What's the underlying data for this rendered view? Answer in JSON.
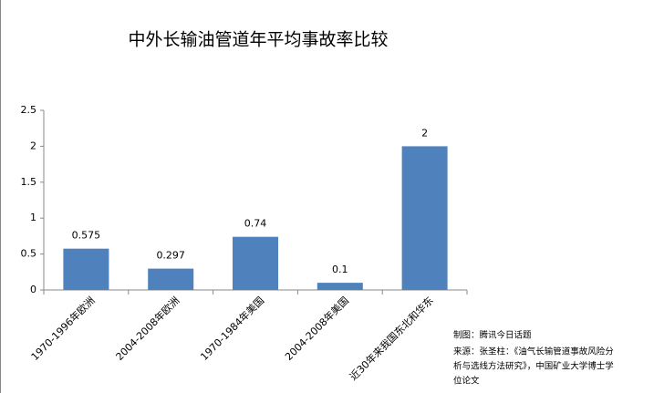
{
  "chart_data": {
    "type": "bar",
    "title": "中外长输油管道年平均事故率比较",
    "categories": [
      "1970-1996年欧洲",
      "2004-2008年欧洲",
      "1970-1984年美国",
      "2004-2008年美国",
      "近30年来我国东北和华东"
    ],
    "values": [
      0.575,
      0.297,
      0.74,
      0.1,
      2
    ],
    "color": "#4f81bd",
    "ylim": [
      0,
      2.5
    ],
    "yticks": [
      0,
      0.5,
      1,
      1.5,
      2,
      2.5
    ],
    "grid": false,
    "notes": [
      "制图：腾讯今日话题",
      "来源：张圣柱：《油气长输管道事故风险分",
      "析与选线方法研究》，中国矿业大学博士学",
      "位论文"
    ]
  }
}
